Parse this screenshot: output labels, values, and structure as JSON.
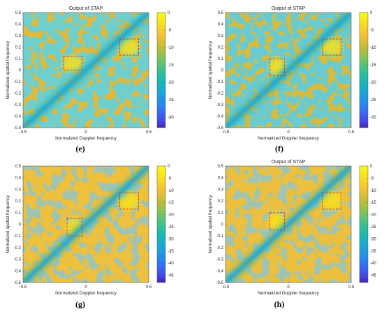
{
  "colors": {
    "scale": [
      "#3e26a8",
      "#4743e3",
      "#3b63f4",
      "#2887f0",
      "#1ba4d8",
      "#18b7b6",
      "#3cc08e",
      "#7ec35c",
      "#c2bc38",
      "#f5c035",
      "#f8e11e",
      "#f9fb15"
    ],
    "clutter_ridge": "#1eb0b4",
    "target_box": "#cc2222"
  },
  "chart_data": [
    {
      "panel": "e",
      "type": "heatmap",
      "title": "Output of STAP",
      "caption": "(e)",
      "xlabel": "Normalized Doppler frequency",
      "ylabel": "Normalized spatial frequency",
      "xlim": [
        -0.5,
        0.5
      ],
      "ylim": [
        -0.5,
        0.5
      ],
      "x_ticks": [
        "-0.5",
        "0",
        "0.5"
      ],
      "y_ticks": [
        "-0.5",
        "-0.4",
        "-0.3",
        "-0.2",
        "-0.1",
        "0",
        "0.1",
        "0.2",
        "0.3",
        "0.4",
        "0.5"
      ],
      "colorbar_ticks": [
        "0",
        "-5",
        "-10",
        "-15",
        "-20",
        "-25",
        "-30"
      ],
      "colorbar_range": [
        -33,
        0
      ],
      "clutter_ridge": {
        "from": [
          -0.5,
          -0.5
        ],
        "to": [
          0.5,
          0.5
        ]
      },
      "boxes": [
        {
          "x": [
            -0.18,
            -0.03
          ],
          "y": [
            0.0,
            0.12
          ]
        },
        {
          "x": [
            0.27,
            0.42
          ],
          "y": [
            0.13,
            0.27
          ]
        }
      ]
    },
    {
      "panel": "f",
      "type": "heatmap",
      "title": "Output of STAP",
      "caption": "(f)",
      "xlabel": "Normalized Doppler frequency",
      "ylabel": "Normalized spatial frequency",
      "xlim": [
        -0.5,
        0.5
      ],
      "ylim": [
        -0.5,
        0.5
      ],
      "x_ticks": [
        "-0.5",
        "0",
        "0.5"
      ],
      "y_ticks": [
        "-0.5",
        "-0.4",
        "-0.3",
        "-0.2",
        "-0.1",
        "0",
        "0.1",
        "0.2",
        "0.3",
        "0.4",
        "0.5"
      ],
      "colorbar_ticks": [
        "0",
        "-5",
        "-10",
        "-15",
        "-20",
        "-25",
        "-30"
      ],
      "colorbar_range": [
        -33,
        0
      ],
      "clutter_ridge": {
        "from": [
          -0.5,
          -0.5
        ],
        "to": [
          0.5,
          0.5
        ]
      },
      "boxes": [
        {
          "x": [
            -0.15,
            -0.03
          ],
          "y": [
            -0.05,
            0.1
          ]
        },
        {
          "x": [
            0.27,
            0.42
          ],
          "y": [
            0.13,
            0.27
          ]
        }
      ]
    },
    {
      "panel": "g",
      "type": "heatmap",
      "title": "",
      "caption": "(g)",
      "xlabel": "Normalized Doppler frequency",
      "ylabel": "Normalized spatial frequency",
      "xlim": [
        -0.5,
        0.5
      ],
      "ylim": [
        -0.5,
        0.5
      ],
      "x_ticks": [
        "-0.5",
        "0",
        "0.5"
      ],
      "y_ticks": [
        "-0.5",
        "-0.4",
        "-0.3",
        "-0.2",
        "-0.1",
        "0",
        "0.1",
        "0.2",
        "0.3",
        "0.4",
        "0.5"
      ],
      "colorbar_ticks": [
        "0",
        "-5",
        "-10",
        "-15",
        "-20",
        "-25",
        "-30",
        "-35",
        "-40",
        "-45"
      ],
      "colorbar_range": [
        -48,
        0
      ],
      "clutter_ridge": {
        "from": [
          -0.5,
          -0.5
        ],
        "to": [
          0.5,
          0.5
        ]
      },
      "boxes": [
        {
          "x": [
            -0.15,
            -0.03
          ],
          "y": [
            -0.1,
            0.05
          ]
        },
        {
          "x": [
            0.27,
            0.42
          ],
          "y": [
            0.13,
            0.27
          ]
        }
      ]
    },
    {
      "panel": "h",
      "type": "heatmap",
      "title": "Output of STAP",
      "caption": "(h)",
      "xlabel": "Normalized Doppler frequency",
      "ylabel": "Normalized spatial frequency",
      "xlim": [
        -0.5,
        0.5
      ],
      "ylim": [
        -0.5,
        0.5
      ],
      "x_ticks": [
        "-0.5",
        "0",
        "0.5"
      ],
      "y_ticks": [
        "-0.5",
        "-0.4",
        "-0.3",
        "-0.2",
        "-0.1",
        "0",
        "0.1",
        "0.2",
        "0.3",
        "0.4",
        "0.5"
      ],
      "colorbar_ticks": [
        "0",
        "-5",
        "-10",
        "-15",
        "-20",
        "-25",
        "-30",
        "-35",
        "-40",
        "-45"
      ],
      "colorbar_range": [
        -48,
        0
      ],
      "clutter_ridge": {
        "from": [
          -0.5,
          -0.5
        ],
        "to": [
          0.5,
          0.5
        ]
      },
      "boxes": [
        {
          "x": [
            -0.15,
            -0.03
          ],
          "y": [
            -0.05,
            0.1
          ]
        },
        {
          "x": [
            0.27,
            0.42
          ],
          "y": [
            0.13,
            0.27
          ]
        }
      ]
    }
  ]
}
